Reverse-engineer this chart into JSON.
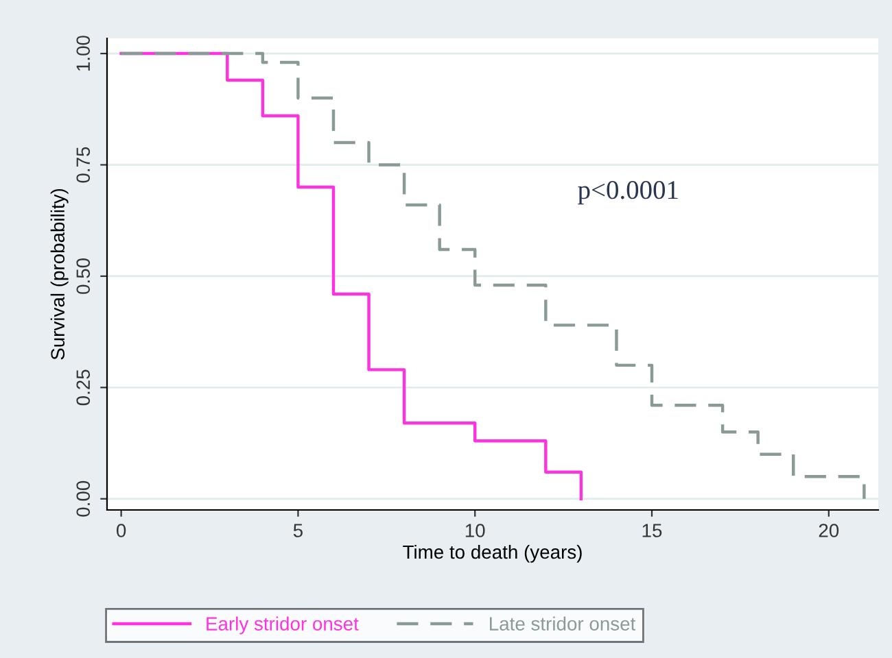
{
  "chart_data": {
    "type": "step",
    "xlabel": "Time to death (years)",
    "ylabel": "Survival (probability)",
    "series": [
      {
        "name": "Early stridor onset",
        "color": "#ff33dd",
        "line_style": "solid",
        "x": [
          0,
          3,
          4,
          5,
          6,
          7,
          8,
          10,
          12,
          13
        ],
        "values": [
          1,
          0.94,
          0.86,
          0.7,
          0.46,
          0.29,
          0.17,
          0.13,
          0.06,
          0
        ]
      },
      {
        "name": "Late stridor onset",
        "color": "#8a9a96",
        "line_style": "dashed",
        "x": [
          0,
          4,
          5,
          6,
          7,
          8,
          9,
          10,
          12,
          14,
          15,
          17,
          18,
          19,
          21
        ],
        "values": [
          1,
          0.98,
          0.9,
          0.8,
          0.75,
          0.66,
          0.56,
          0.48,
          0.39,
          0.3,
          0.21,
          0.15,
          0.1,
          0.05,
          0
        ]
      }
    ],
    "xlim": [
      -0.4,
      21.4
    ],
    "ylim": [
      -0.025,
      1.034
    ],
    "xticks": [
      0,
      5,
      10,
      15,
      20
    ],
    "yticks": [
      {
        "value": 0,
        "label": "0.00"
      },
      {
        "value": 0.25,
        "label": "0.25"
      },
      {
        "value": 0.5,
        "label": "0.50"
      },
      {
        "value": 0.75,
        "label": "0.75"
      },
      {
        "value": 1,
        "label": "1.00"
      }
    ],
    "grid": "y",
    "legend": "bottom",
    "annotations": [
      "p<0.0001"
    ]
  }
}
